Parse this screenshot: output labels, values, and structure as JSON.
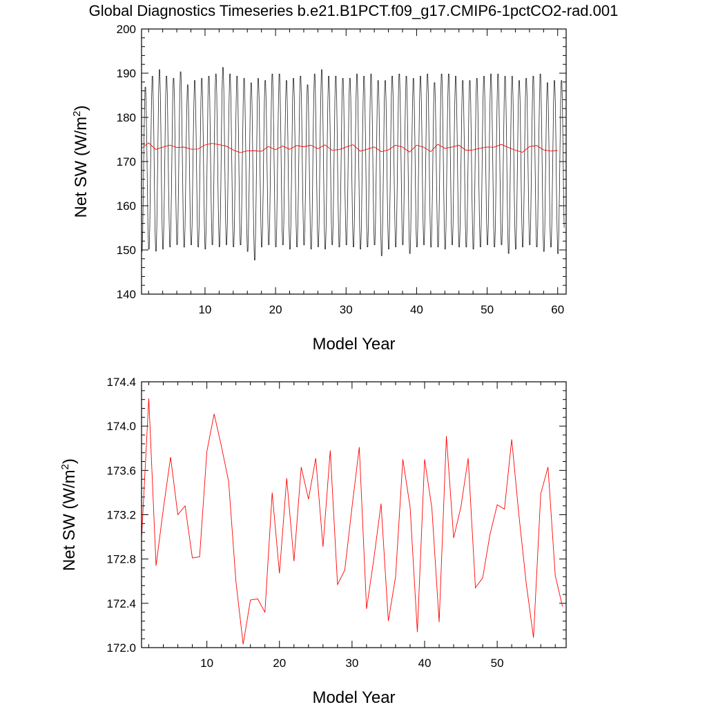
{
  "page_title": "Global Diagnostics Timeseries b.e21.B1PCT.f09_g17.CMIP6-1pctCO2-rad.001",
  "chart_data": [
    {
      "type": "line",
      "title": "Global Diagnostics Timeseries b.e21.B1PCT.f09_g17.CMIP6-1pctCO2-rad.001",
      "xlabel": "Model Year",
      "ylabel_main": "Net SW (W/m",
      "ylabel_sup": "2",
      "ylabel_close": ")",
      "xlim": [
        1,
        61.2
      ],
      "ylim": [
        140,
        200
      ],
      "xticks": [
        10,
        20,
        30,
        40,
        50,
        60
      ],
      "yticks": [
        140,
        150,
        160,
        170,
        180,
        190,
        200
      ],
      "xtick_labels": [
        "10",
        "20",
        "30",
        "40",
        "50",
        "60"
      ],
      "ytick_labels": [
        "140",
        "150",
        "160",
        "170",
        "180",
        "190",
        "200"
      ],
      "series": [
        {
          "color": "#222222",
          "note": "monthly global mean",
          "values_description_omitted": false,
          "annual_max": [
            187.5,
            190.0,
            191.5,
            190.0,
            189.5,
            191.0,
            188.0,
            189.0,
            189.5,
            190.0,
            190.5,
            192.0,
            190.5,
            190.0,
            189.5,
            188.5,
            189.5,
            189.0,
            190.5,
            190.5,
            189.0,
            189.5,
            190.0,
            188.0,
            190.5,
            191.5,
            190.0,
            190.0,
            189.5,
            189.5,
            190.5,
            190.0,
            190.5,
            189.0,
            189.0,
            190.0,
            190.5,
            190.0,
            189.5,
            190.0,
            190.5,
            188.5,
            190.5,
            190.5,
            190.0,
            189.0,
            189.0,
            189.5,
            190.0,
            190.5,
            190.5,
            190.0,
            190.0,
            189.0,
            189.5,
            190.0,
            190.5,
            188.5,
            189.0,
            189.0
          ],
          "annual_min": [
            149.0,
            149.5,
            149.0,
            149.5,
            150.0,
            150.5,
            150.0,
            150.5,
            150.0,
            149.5,
            150.5,
            150.0,
            150.5,
            150.0,
            150.5,
            149.0,
            147.0,
            150.0,
            150.5,
            150.0,
            150.5,
            149.5,
            150.0,
            150.5,
            149.5,
            150.0,
            149.5,
            150.5,
            150.0,
            150.5,
            150.0,
            149.5,
            150.0,
            150.5,
            148.0,
            149.5,
            150.0,
            150.5,
            148.5,
            150.0,
            150.5,
            150.0,
            150.0,
            149.5,
            150.5,
            150.0,
            150.0,
            149.5,
            150.0,
            150.5,
            150.0,
            150.5,
            148.5,
            149.5,
            150.0,
            150.5,
            150.0,
            149.0,
            150.0,
            148.5
          ]
        },
        {
          "color": "#ff0000",
          "note": "annual mean",
          "x": [
            1,
            2,
            3,
            4,
            5,
            6,
            7,
            8,
            9,
            10,
            11,
            12,
            13,
            14,
            15,
            16,
            17,
            18,
            19,
            20,
            21,
            22,
            23,
            24,
            25,
            26,
            27,
            28,
            29,
            30,
            31,
            32,
            33,
            34,
            35,
            36,
            37,
            38,
            39,
            40,
            41,
            42,
            43,
            44,
            45,
            46,
            47,
            48,
            49,
            50,
            51,
            52,
            53,
            54,
            55,
            56,
            57,
            58,
            59,
            60
          ],
          "values": [
            172.98,
            174.25,
            172.74,
            173.25,
            173.72,
            173.2,
            173.28,
            172.81,
            172.82,
            173.77,
            174.11,
            173.82,
            173.5,
            172.6,
            172.03,
            172.43,
            172.44,
            172.32,
            173.4,
            172.67,
            173.53,
            172.78,
            173.63,
            173.34,
            173.71,
            172.91,
            173.78,
            172.57,
            172.7,
            173.27,
            173.81,
            172.35,
            172.8,
            173.3,
            172.24,
            172.64,
            173.7,
            173.27,
            172.14,
            173.7,
            173.26,
            172.23,
            173.91,
            172.99,
            173.27,
            173.71,
            172.54,
            172.63,
            173.02,
            173.29,
            173.25,
            173.88,
            173.19,
            172.58,
            172.09,
            173.39,
            173.63,
            172.65,
            172.37,
            172.5
          ]
        }
      ]
    },
    {
      "type": "line",
      "xlabel": "Model Year",
      "ylabel_main": "Net SW (W/m",
      "ylabel_sup": "2",
      "ylabel_close": ")",
      "xlim": [
        1,
        59.5
      ],
      "ylim": [
        172.0,
        174.4
      ],
      "xticks": [
        10,
        20,
        30,
        40,
        50
      ],
      "yticks": [
        172.0,
        172.4,
        172.8,
        173.2,
        173.6,
        174.0,
        174.4
      ],
      "xtick_labels": [
        "10",
        "20",
        "30",
        "40",
        "50"
      ],
      "ytick_labels": [
        "172.0",
        "172.4",
        "172.8",
        "173.2",
        "173.6",
        "174.0",
        "174.4"
      ],
      "series": [
        {
          "color": "#ff0000",
          "x": [
            1,
            2,
            3,
            4,
            5,
            6,
            7,
            8,
            9,
            10,
            11,
            12,
            13,
            14,
            15,
            16,
            17,
            18,
            19,
            20,
            21,
            22,
            23,
            24,
            25,
            26,
            27,
            28,
            29,
            30,
            31,
            32,
            33,
            34,
            35,
            36,
            37,
            38,
            39,
            40,
            41,
            42,
            43,
            44,
            45,
            46,
            47,
            48,
            49,
            50,
            51,
            52,
            53,
            54,
            55,
            56,
            57,
            58,
            59
          ],
          "values": [
            172.98,
            174.25,
            172.74,
            173.25,
            173.72,
            173.2,
            173.28,
            172.81,
            172.82,
            173.77,
            174.11,
            173.82,
            173.5,
            172.6,
            172.03,
            172.43,
            172.44,
            172.32,
            173.4,
            172.67,
            173.53,
            172.78,
            173.63,
            173.34,
            173.71,
            172.91,
            173.78,
            172.57,
            172.7,
            173.27,
            173.81,
            172.35,
            172.8,
            173.3,
            172.24,
            172.64,
            173.7,
            173.27,
            172.14,
            173.7,
            173.26,
            172.23,
            173.91,
            172.99,
            173.27,
            173.71,
            172.54,
            172.63,
            173.02,
            173.29,
            173.25,
            173.88,
            173.19,
            172.58,
            172.09,
            173.39,
            173.63,
            172.65,
            172.37
          ]
        }
      ]
    }
  ]
}
